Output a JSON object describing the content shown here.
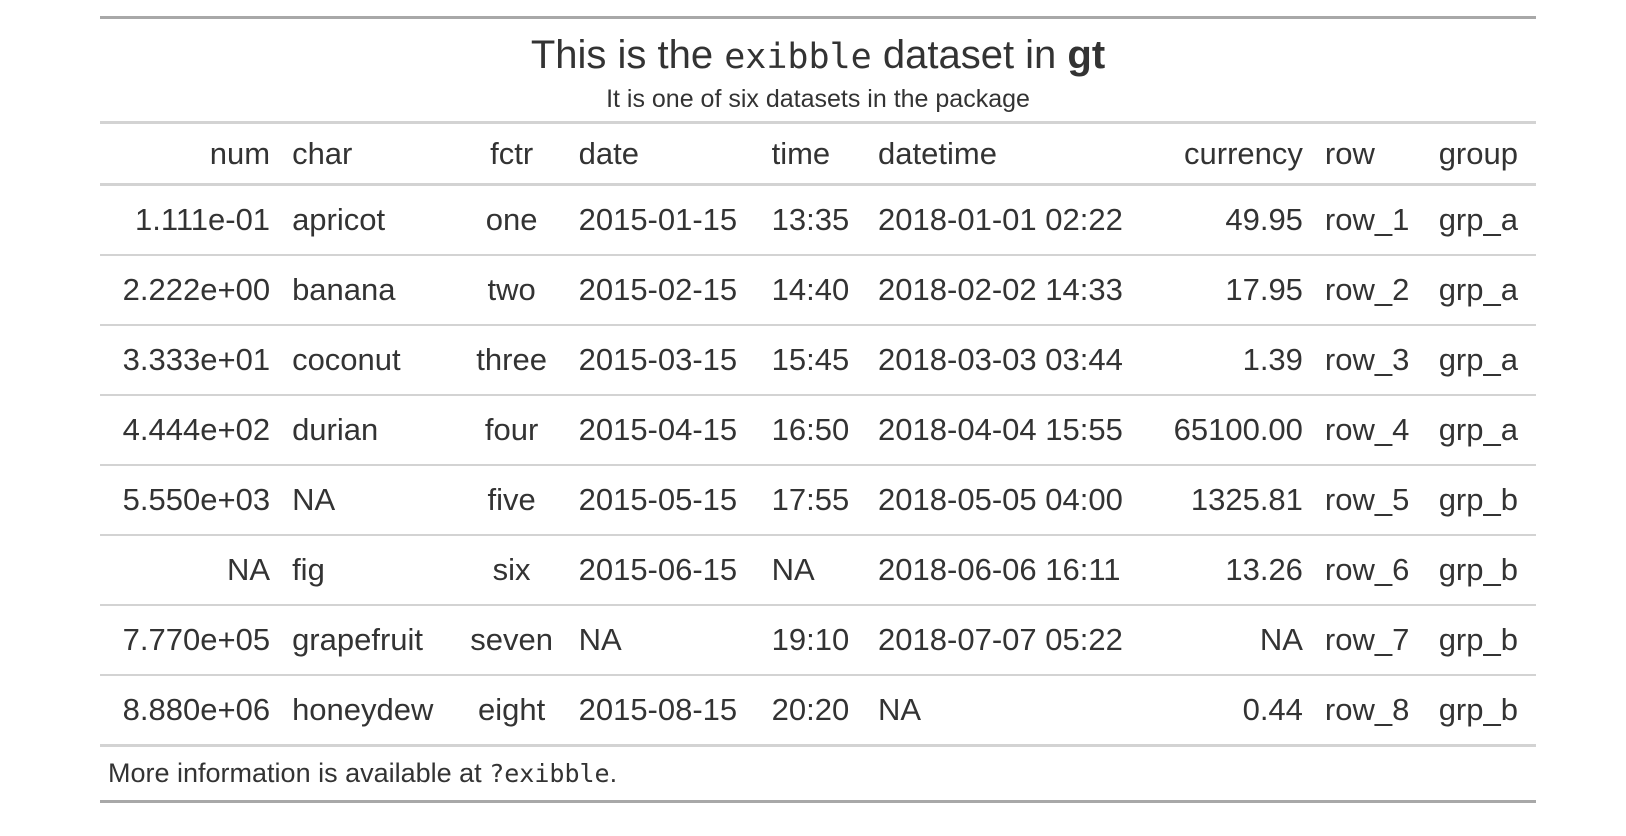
{
  "heading": {
    "title_prefix": "This is the ",
    "title_code": "exibble",
    "title_middle": " dataset in ",
    "title_bold": "gt",
    "subtitle": "It is one of six datasets in the package"
  },
  "columns": [
    {
      "key": "num",
      "label": "num",
      "align": "r"
    },
    {
      "key": "char",
      "label": "char",
      "align": "l"
    },
    {
      "key": "fctr",
      "label": "fctr",
      "align": "c"
    },
    {
      "key": "date",
      "label": "date",
      "align": "l"
    },
    {
      "key": "time",
      "label": "time",
      "align": "l"
    },
    {
      "key": "datetime",
      "label": "datetime",
      "align": "l"
    },
    {
      "key": "currency",
      "label": "currency",
      "align": "r"
    },
    {
      "key": "row",
      "label": "row",
      "align": "l"
    },
    {
      "key": "group",
      "label": "group",
      "align": "l"
    }
  ],
  "rows": [
    {
      "num": "1.111e-01",
      "char": "apricot",
      "fctr": "one",
      "date": "2015-01-15",
      "time": "13:35",
      "datetime": "2018-01-01 02:22",
      "currency": "49.95",
      "row": "row_1",
      "group": "grp_a"
    },
    {
      "num": "2.222e+00",
      "char": "banana",
      "fctr": "two",
      "date": "2015-02-15",
      "time": "14:40",
      "datetime": "2018-02-02 14:33",
      "currency": "17.95",
      "row": "row_2",
      "group": "grp_a"
    },
    {
      "num": "3.333e+01",
      "char": "coconut",
      "fctr": "three",
      "date": "2015-03-15",
      "time": "15:45",
      "datetime": "2018-03-03 03:44",
      "currency": "1.39",
      "row": "row_3",
      "group": "grp_a"
    },
    {
      "num": "4.444e+02",
      "char": "durian",
      "fctr": "four",
      "date": "2015-04-15",
      "time": "16:50",
      "datetime": "2018-04-04 15:55",
      "currency": "65100.00",
      "row": "row_4",
      "group": "grp_a"
    },
    {
      "num": "5.550e+03",
      "char": "NA",
      "fctr": "five",
      "date": "2015-05-15",
      "time": "17:55",
      "datetime": "2018-05-05 04:00",
      "currency": "1325.81",
      "row": "row_5",
      "group": "grp_b"
    },
    {
      "num": "NA",
      "char": "fig",
      "fctr": "six",
      "date": "2015-06-15",
      "time": "NA",
      "datetime": "2018-06-06 16:11",
      "currency": "13.26",
      "row": "row_6",
      "group": "grp_b"
    },
    {
      "num": "7.770e+05",
      "char": "grapefruit",
      "fctr": "seven",
      "date": "NA",
      "time": "19:10",
      "datetime": "2018-07-07 05:22",
      "currency": "NA",
      "row": "row_7",
      "group": "grp_b"
    },
    {
      "num": "8.880e+06",
      "char": "honeydew",
      "fctr": "eight",
      "date": "2015-08-15",
      "time": "20:20",
      "datetime": "NA",
      "currency": "0.44",
      "row": "row_8",
      "group": "grp_b"
    }
  ],
  "footnote": {
    "prefix": "More information is available at ",
    "code": "?exibble",
    "suffix": "."
  },
  "colors": {
    "text": "#333333",
    "outer_border": "#a8a8a8",
    "inner_border": "#d3d3d3"
  }
}
